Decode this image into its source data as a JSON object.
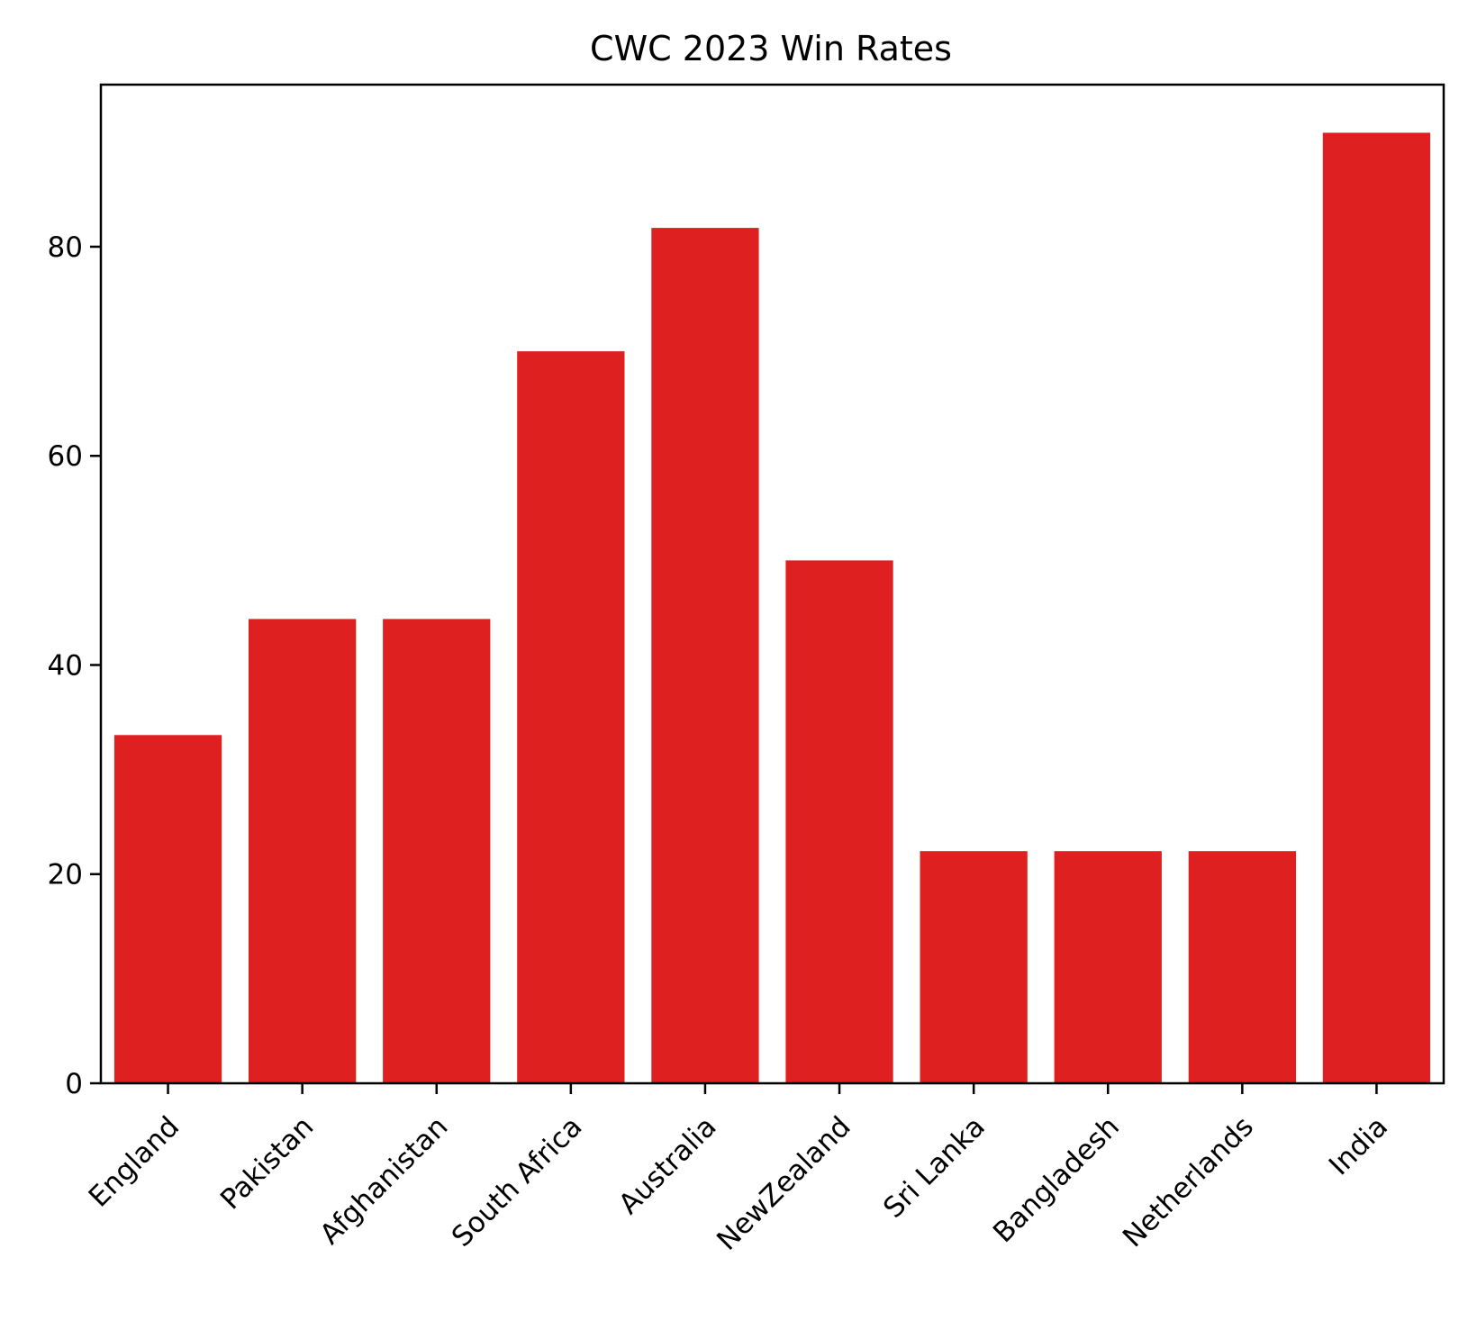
{
  "chart_data": {
    "type": "bar",
    "title": "CWC 2023 Win Rates",
    "xlabel": "",
    "ylabel": "",
    "categories": [
      "England",
      "Pakistan",
      "Afghanistan",
      "South Africa",
      "Australia",
      "NewZealand",
      "Sri Lanka",
      "Bangladesh",
      "Netherlands",
      "India"
    ],
    "values": [
      33.3,
      44.4,
      44.4,
      70.0,
      81.8,
      50.0,
      22.2,
      22.2,
      22.2,
      90.9
    ],
    "ylim": [
      0,
      95.5
    ],
    "yticks": [
      0,
      20,
      40,
      60,
      80
    ],
    "ytick_labels": [
      "0",
      "20",
      "40",
      "60",
      "80"
    ],
    "bar_color": "#de2021",
    "grid": false,
    "legend": "none"
  }
}
